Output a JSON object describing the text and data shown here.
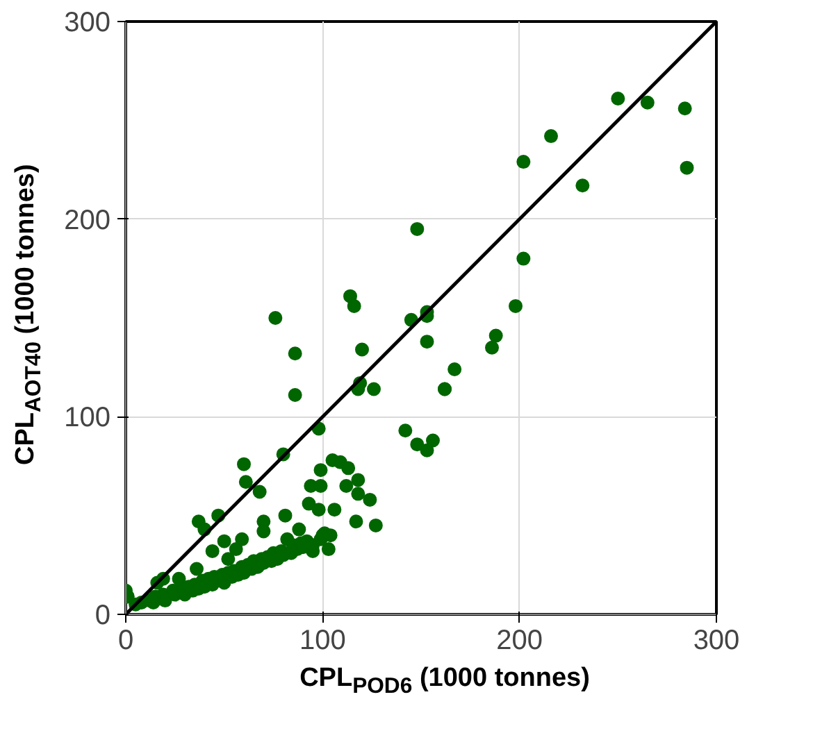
{
  "chart_data": {
    "type": "scatter",
    "xlabel": "CPL$_{POD6}$ (1000 tonnes)",
    "ylabel": "CPL$_{AOT40}$ (1000 tonnes)",
    "xlim": [
      0,
      300
    ],
    "ylim": [
      0,
      300
    ],
    "xticks": [
      0,
      100,
      200,
      300
    ],
    "yticks": [
      0,
      100,
      200,
      300
    ],
    "grid": true,
    "marker": "circle",
    "series": [
      {
        "color": "#006600",
        "x": [
          250,
          265,
          284,
          285,
          202,
          216,
          232,
          202,
          198,
          188,
          186,
          167,
          162,
          153,
          153,
          148,
          156,
          153,
          148,
          76,
          86,
          86,
          114,
          116,
          120,
          145,
          153,
          119,
          118,
          126,
          162,
          98,
          142,
          80,
          60,
          61,
          68,
          105,
          109,
          113,
          99,
          94,
          99,
          112,
          118,
          118,
          124,
          93,
          98,
          106,
          117,
          127,
          101,
          104,
          103,
          95,
          81,
          70,
          70,
          47,
          37,
          40,
          50,
          59,
          56,
          44,
          52,
          88,
          82,
          5,
          8,
          12,
          14,
          15,
          19,
          20,
          24,
          25,
          29,
          30,
          32,
          34,
          35,
          37,
          39,
          40,
          42,
          44,
          45,
          49,
          50,
          52,
          54,
          55,
          57,
          59,
          60,
          62,
          64,
          65,
          67,
          69,
          70,
          72,
          74,
          75,
          77,
          79,
          80,
          84,
          85,
          87,
          89,
          90,
          92,
          95,
          99,
          100,
          0,
          1,
          19,
          27,
          16,
          36
        ],
        "values": [
          261,
          259,
          256,
          226,
          229,
          242,
          217,
          180,
          156,
          141,
          135,
          124,
          114,
          153,
          138,
          195,
          88,
          83,
          86,
          150,
          132,
          111,
          161,
          156,
          134,
          149,
          151,
          117,
          114,
          114,
          114,
          94,
          93,
          81,
          76,
          67,
          62,
          78,
          77,
          74,
          73,
          65,
          65,
          65,
          68,
          61,
          58,
          56,
          53,
          53,
          47,
          45,
          41,
          40,
          33,
          32,
          50,
          47,
          42,
          50,
          47,
          43,
          37,
          38,
          33,
          32,
          28,
          43,
          38,
          5,
          6,
          7,
          6,
          9,
          10,
          7,
          12,
          10,
          13,
          10,
          14,
          12,
          15,
          13,
          17,
          14,
          18,
          15,
          19,
          20,
          16,
          21,
          19,
          22,
          20,
          24,
          21,
          25,
          23,
          27,
          24,
          28,
          26,
          29,
          27,
          31,
          28,
          32,
          30,
          31,
          35,
          33,
          36,
          34,
          37,
          35,
          38,
          40,
          12,
          9,
          18,
          18,
          16,
          23
        ]
      },
      {
        "type": "line",
        "color": "#000000",
        "x": [
          0,
          300
        ],
        "values": [
          0,
          300
        ],
        "marker": "none"
      }
    ]
  }
}
